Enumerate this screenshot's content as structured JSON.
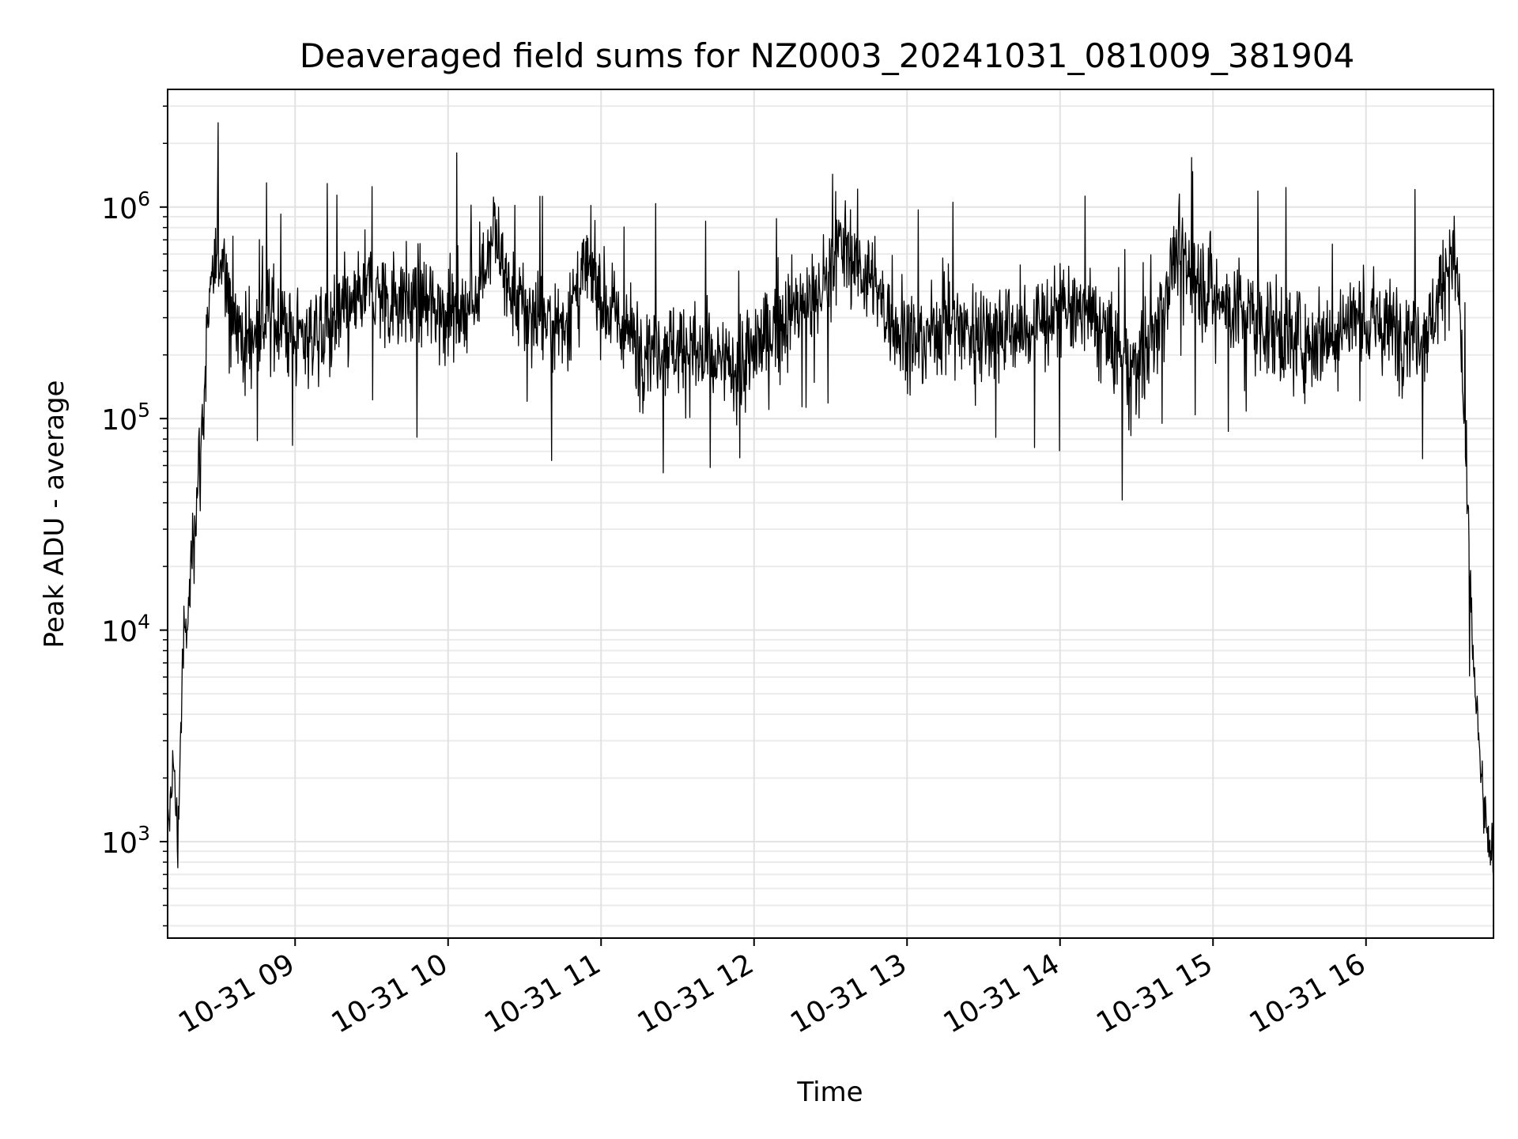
{
  "chart_data": {
    "type": "line",
    "title": "Deaveraged field sums for NZ0003_20241031_081009_381904",
    "xlabel": "Time",
    "ylabel": "Peak ADU - average",
    "y_scale": "log",
    "ylim": [
      350,
      3600000
    ],
    "xlim": [
      "2024-10-31 08:10",
      "2024-10-31 16:50"
    ],
    "grid": true,
    "line_color": "#000000",
    "x_ticks": [
      {
        "t": "2024-10-31 09:00",
        "label": "10-31 09"
      },
      {
        "t": "2024-10-31 10:00",
        "label": "10-31 10"
      },
      {
        "t": "2024-10-31 11:00",
        "label": "10-31 11"
      },
      {
        "t": "2024-10-31 12:00",
        "label": "10-31 12"
      },
      {
        "t": "2024-10-31 13:00",
        "label": "10-31 13"
      },
      {
        "t": "2024-10-31 14:00",
        "label": "10-31 14"
      },
      {
        "t": "2024-10-31 15:00",
        "label": "10-31 15"
      },
      {
        "t": "2024-10-31 16:00",
        "label": "10-31 16"
      }
    ],
    "y_ticks": [
      {
        "value": 1000,
        "base": "10",
        "exp": "3"
      },
      {
        "value": 10000,
        "base": "10",
        "exp": "4"
      },
      {
        "value": 100000,
        "base": "10",
        "exp": "5"
      },
      {
        "value": 1000000,
        "base": "10",
        "exp": "6"
      }
    ],
    "series": [
      {
        "color": "#000000",
        "x": [
          "2024-10-31 08:10",
          "2024-10-31 08:12",
          "2024-10-31 08:14",
          "2024-10-31 08:16",
          "2024-10-31 08:18",
          "2024-10-31 08:20",
          "2024-10-31 08:23",
          "2024-10-31 08:26",
          "2024-10-31 08:30",
          "2024-10-31 08:33",
          "2024-10-31 08:36",
          "2024-10-31 08:40",
          "2024-10-31 08:45",
          "2024-10-31 08:50",
          "2024-10-31 08:55",
          "2024-10-31 09:00",
          "2024-10-31 09:10",
          "2024-10-31 09:20",
          "2024-10-31 09:30",
          "2024-10-31 09:35",
          "2024-10-31 09:40",
          "2024-10-31 09:50",
          "2024-10-31 10:00",
          "2024-10-31 10:10",
          "2024-10-31 10:18",
          "2024-10-31 10:25",
          "2024-10-31 10:35",
          "2024-10-31 10:45",
          "2024-10-31 10:55",
          "2024-10-31 11:05",
          "2024-10-31 11:15",
          "2024-10-31 11:25",
          "2024-10-31 11:35",
          "2024-10-31 11:45",
          "2024-10-31 11:55",
          "2024-10-31 12:05",
          "2024-10-31 12:15",
          "2024-10-31 12:25",
          "2024-10-31 12:35",
          "2024-10-31 12:45",
          "2024-10-31 12:55",
          "2024-10-31 13:05",
          "2024-10-31 13:15",
          "2024-10-31 13:25",
          "2024-10-31 13:35",
          "2024-10-31 13:45",
          "2024-10-31 13:55",
          "2024-10-31 14:05",
          "2024-10-31 14:15",
          "2024-10-31 14:25",
          "2024-10-31 14:35",
          "2024-10-31 14:45",
          "2024-10-31 14:55",
          "2024-10-31 15:05",
          "2024-10-31 15:15",
          "2024-10-31 15:25",
          "2024-10-31 15:35",
          "2024-10-31 15:45",
          "2024-10-31 15:55",
          "2024-10-31 16:05",
          "2024-10-31 16:15",
          "2024-10-31 16:25",
          "2024-10-31 16:32",
          "2024-10-31 16:36",
          "2024-10-31 16:38",
          "2024-10-31 16:40",
          "2024-10-31 16:42",
          "2024-10-31 16:44",
          "2024-10-31 16:46",
          "2024-10-31 16:48",
          "2024-10-31 16:50"
        ],
        "y": [
          900,
          2500,
          1000,
          8000,
          11000,
          30000,
          70000,
          300000,
          650000,
          500000,
          320000,
          220000,
          260000,
          320000,
          280000,
          240000,
          260000,
          300000,
          420000,
          360000,
          380000,
          340000,
          320000,
          350000,
          800000,
          350000,
          300000,
          280000,
          500000,
          300000,
          220000,
          230000,
          210000,
          180000,
          170000,
          250000,
          320000,
          380000,
          700000,
          450000,
          280000,
          220000,
          300000,
          260000,
          280000,
          250000,
          300000,
          330000,
          280000,
          180000,
          200000,
          600000,
          450000,
          350000,
          300000,
          260000,
          230000,
          250000,
          300000,
          270000,
          260000,
          270000,
          550000,
          500000,
          150000,
          30000,
          8000,
          3000,
          1500,
          900,
          1000
        ]
      }
    ]
  }
}
